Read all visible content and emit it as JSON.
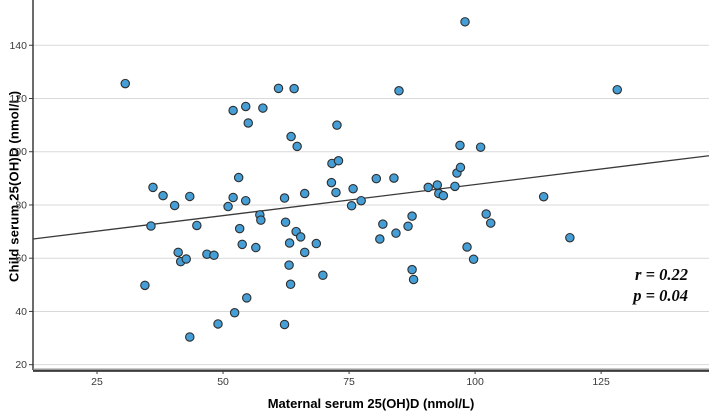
{
  "chart_data": {
    "type": "scatter",
    "title": "",
    "xlabel": "Maternal serum 25(OH)D (nmol/L)",
    "ylabel": "Child serum 25(OH)D (nmol/L)",
    "x_ticks": [
      25,
      50,
      75,
      100,
      125
    ],
    "y_ticks": [
      20,
      40,
      60,
      80,
      100,
      120,
      140
    ],
    "xlim": [
      12.3,
      146.4
    ],
    "ylim": [
      18,
      157
    ],
    "grid": "horizontal-only",
    "legend": "none",
    "annotation": {
      "line1": "r = 0.22",
      "line2": "p = 0.04"
    },
    "trendline": {
      "x1": 12.3,
      "y1": 67.2,
      "x2": 146.4,
      "y2": 98.5
    },
    "point_style": {
      "fill": "#459fd6",
      "stroke": "#2e2e2e",
      "radius": 4.2
    },
    "colors": {
      "gridline": "#d9d9d9",
      "axis": "#3c3c3c",
      "trendline": "#3a3a3a",
      "tick_label": "#3a3a3a",
      "label": "#000000",
      "background": "#ffffff"
    },
    "points": [
      [
        30.6,
        125.6
      ],
      [
        52,
        115.5
      ],
      [
        54.5,
        117
      ],
      [
        57.9,
        116.4
      ],
      [
        55,
        110.8
      ],
      [
        61,
        123.8
      ],
      [
        64.1,
        123.7
      ],
      [
        63.5,
        105.7
      ],
      [
        64.7,
        102
      ],
      [
        72.6,
        110
      ],
      [
        84.9,
        122.9
      ],
      [
        98,
        148.8
      ],
      [
        97,
        102.4
      ],
      [
        101.1,
        101.7
      ],
      [
        128.2,
        123.3
      ],
      [
        36.1,
        86.6
      ],
      [
        38.1,
        83.5
      ],
      [
        40.4,
        79.8
      ],
      [
        43.4,
        83.2
      ],
      [
        52,
        82.8
      ],
      [
        54.5,
        81.6
      ],
      [
        51,
        79.4
      ],
      [
        57.3,
        76.3
      ],
      [
        57.5,
        74.3
      ],
      [
        35.7,
        72.1
      ],
      [
        44.8,
        72.3
      ],
      [
        53.3,
        71.1
      ],
      [
        53.8,
        65.2
      ],
      [
        56.5,
        64
      ],
      [
        41.1,
        62.2
      ],
      [
        41.6,
        58.7
      ],
      [
        42.7,
        59.7
      ],
      [
        46.8,
        61.5
      ],
      [
        48.2,
        61.1
      ],
      [
        34.5,
        49.8
      ],
      [
        54.7,
        45.1
      ],
      [
        52.3,
        39.5
      ],
      [
        49,
        35.3
      ],
      [
        43.4,
        30.4
      ],
      [
        62.2,
        82.6
      ],
      [
        66.2,
        84.3
      ],
      [
        72.4,
        84.7
      ],
      [
        75.5,
        79.7
      ],
      [
        77.4,
        81.6
      ],
      [
        92.8,
        84.3
      ],
      [
        93.7,
        83.5
      ],
      [
        62.4,
        73.5
      ],
      [
        64.5,
        70
      ],
      [
        65.4,
        68
      ],
      [
        63.2,
        65.7
      ],
      [
        68.5,
        65.5
      ],
      [
        66.2,
        62.2
      ],
      [
        81.7,
        72.8
      ],
      [
        81.1,
        67.2
      ],
      [
        84.3,
        69.4
      ],
      [
        86.7,
        72
      ],
      [
        87.5,
        75.8
      ],
      [
        102.2,
        76.6
      ],
      [
        103.1,
        73.2
      ],
      [
        98.4,
        64.2
      ],
      [
        99.7,
        59.6
      ],
      [
        63.1,
        57.4
      ],
      [
        69.8,
        53.6
      ],
      [
        63.4,
        50.2
      ],
      [
        87.5,
        55.7
      ],
      [
        87.8,
        52
      ],
      [
        62.2,
        35.1
      ],
      [
        71.6,
        95.6
      ],
      [
        72.9,
        96.6
      ],
      [
        80.4,
        89.9
      ],
      [
        83.9,
        90.1
      ],
      [
        71.5,
        88.4
      ],
      [
        75.8,
        86.1
      ],
      [
        90.7,
        86.6
      ],
      [
        92.5,
        87.5
      ],
      [
        96,
        87
      ],
      [
        96.4,
        92
      ],
      [
        97.1,
        94.1
      ],
      [
        113.6,
        83.1
      ],
      [
        118.8,
        67.7
      ],
      [
        53.1,
        90.3
      ]
    ]
  }
}
